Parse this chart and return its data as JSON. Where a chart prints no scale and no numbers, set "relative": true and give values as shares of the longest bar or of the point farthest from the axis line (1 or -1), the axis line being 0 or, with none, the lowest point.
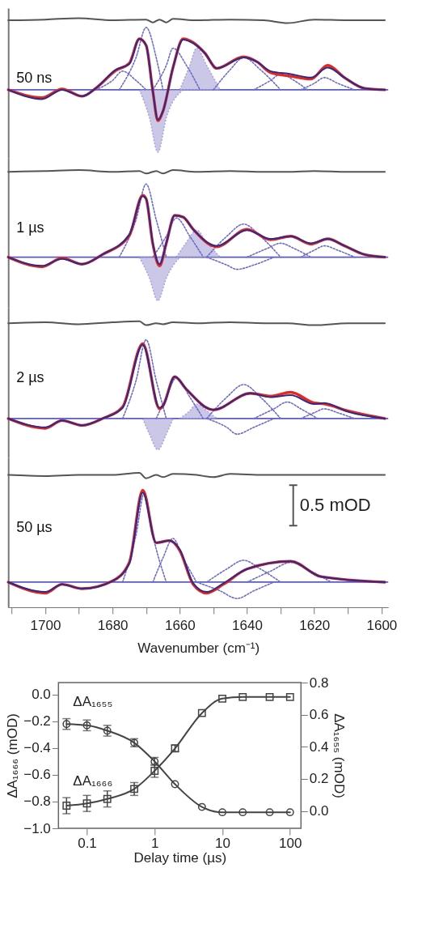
{
  "chart_data": [
    {
      "type": "line",
      "relative": true,
      "line_style": "solid",
      "xlim": [
        1711,
        1598
      ],
      "tick_labels": false,
      "annotations": [
        "50 ns"
      ],
      "ref_lines": [
        {
          "axis": "y",
          "value": 0,
          "color": "#5a5ac8"
        }
      ],
      "series": [
        {
          "type": "area",
          "color": "#b9b5e0",
          "line_style": "dotted",
          "x": [
            1672,
            1669,
            1666.5,
            1664,
            1659
          ],
          "values": [
            0,
            -0.39,
            -0.87,
            -0.39,
            0
          ]
        },
        {
          "type": "area",
          "color": "#b9b5e0",
          "line_style": "dotted",
          "x": [
            1660,
            1657,
            1655,
            1652,
            1648
          ],
          "values": [
            0,
            0.34,
            0.58,
            0.34,
            0
          ]
        },
        {
          "color": "#6b6bcc",
          "line_style": "dotted",
          "x": [
            1678,
            1673,
            1670,
            1667,
            1665
          ],
          "values": [
            0,
            0.45,
            0.87,
            0.45,
            0
          ]
        },
        {
          "color": "#6b6bcc",
          "line_style": "dotted",
          "x": [
            1668,
            1664,
            1662,
            1658,
            1654
          ],
          "values": [
            0,
            0.34,
            0.58,
            0.34,
            0
          ]
        },
        {
          "color": "#6b6bcc",
          "line_style": "dotted",
          "x": [
            1685,
            1680,
            1677,
            1673,
            1670
          ],
          "values": [
            0,
            0.13,
            0.26,
            0.13,
            0
          ]
        },
        {
          "color": "#6b6bcc",
          "line_style": "dotted",
          "x": [
            1650,
            1645,
            1641,
            1636,
            1630
          ],
          "values": [
            0,
            0.28,
            0.45,
            0.28,
            0
          ]
        },
        {
          "color": "#6b6bcc",
          "line_style": "dotted",
          "x": [
            1638,
            1633,
            1630,
            1626,
            1622
          ],
          "values": [
            0,
            0.13,
            0.22,
            0.13,
            0
          ]
        },
        {
          "color": "#6b6bcc",
          "line_style": "dotted",
          "x": [
            1624,
            1620,
            1617,
            1613,
            1608
          ],
          "values": [
            0,
            0.09,
            0.17,
            0.09,
            0
          ]
        },
        {
          "color": "#e8261c",
          "x": [
            1711,
            1701,
            1695,
            1689,
            1685,
            1679,
            1675,
            1672,
            1670,
            1668,
            1666.5,
            1665,
            1662,
            1659,
            1656,
            1652.5,
            1649,
            1641,
            1637,
            1633,
            1627,
            1621,
            1616,
            1611,
            1605,
            1599
          ],
          "values": [
            0,
            -0.11,
            0.01,
            -0.09,
            0.02,
            0.27,
            0.37,
            0.71,
            0.62,
            -0.02,
            -0.43,
            -0.3,
            0.31,
            0.71,
            0.66,
            0.51,
            0.3,
            0.46,
            0.39,
            0.24,
            0.19,
            0.15,
            0.34,
            0.17,
            0.02,
            0
          ]
        },
        {
          "color": "#2b2b8f",
          "x": [
            1711,
            1701,
            1695,
            1689,
            1685,
            1679,
            1675,
            1672,
            1670,
            1668,
            1666.5,
            1665,
            1662,
            1659,
            1656,
            1652.5,
            1649,
            1641,
            1637,
            1633,
            1627,
            1621,
            1616,
            1611,
            1605,
            1599
          ],
          "values": [
            0,
            -0.13,
            0,
            -0.09,
            0.02,
            0.28,
            0.36,
            0.71,
            0.62,
            -0.02,
            -0.42,
            -0.3,
            0.31,
            0.7,
            0.65,
            0.51,
            0.3,
            0.45,
            0.39,
            0.26,
            0.22,
            0.17,
            0.31,
            0.17,
            0.02,
            0
          ]
        },
        {
          "color": "#555555",
          "x": [
            1711,
            1700,
            1690,
            1680,
            1670,
            1668,
            1666,
            1664,
            1662,
            1655,
            1645,
            1635,
            1628,
            1620,
            1610,
            1599
          ],
          "values": [
            0.97,
            0.98,
            1,
            0.97,
            0.98,
            0.94,
            0.98,
            0.94,
            0.99,
            0.97,
            0.98,
            0.97,
            0.93,
            0.98,
            0.97,
            0.97
          ]
        }
      ]
    },
    {
      "type": "line",
      "relative": true,
      "line_style": "solid",
      "xlim": [
        1711,
        1598
      ],
      "tick_labels": false,
      "annotations": [
        "1 µs"
      ],
      "ref_lines": [
        {
          "axis": "y",
          "value": 0,
          "color": "#5a5ac8"
        }
      ],
      "series": [
        {
          "type": "area",
          "color": "#b9b5e0",
          "line_style": "dotted",
          "x": [
            1672,
            1669,
            1666.5,
            1664,
            1660
          ],
          "values": [
            0,
            -0.24,
            -0.5,
            -0.24,
            0
          ]
        },
        {
          "type": "area",
          "color": "#b9b5e0",
          "line_style": "dotted",
          "x": [
            1661,
            1658,
            1655,
            1652,
            1648
          ],
          "values": [
            0,
            0.17,
            0.31,
            0.17,
            0
          ]
        },
        {
          "color": "#6b6bcc",
          "line_style": "dotted",
          "x": [
            1678,
            1673,
            1670,
            1667,
            1664
          ],
          "values": [
            0,
            0.43,
            0.84,
            0.43,
            0
          ]
        },
        {
          "color": "#6b6bcc",
          "line_style": "dotted",
          "x": [
            1668,
            1664,
            1661,
            1657,
            1653
          ],
          "values": [
            0,
            0.24,
            0.45,
            0.24,
            0
          ]
        },
        {
          "color": "#6b6bcc",
          "line_style": "dotted",
          "x": [
            1652,
            1646,
            1641,
            1636,
            1630
          ],
          "values": [
            0,
            0.24,
            0.38,
            0.24,
            0
          ]
        },
        {
          "color": "#6b6bcc",
          "line_style": "dotted",
          "x": [
            1652,
            1646,
            1643,
            1638,
            1632
          ],
          "values": [
            0,
            -0.09,
            -0.14,
            -0.09,
            0
          ]
        },
        {
          "color": "#6b6bcc",
          "line_style": "dotted",
          "x": [
            1640,
            1634,
            1630,
            1626,
            1621
          ],
          "values": [
            0,
            0.1,
            0.16,
            0.1,
            0
          ]
        },
        {
          "color": "#6b6bcc",
          "line_style": "dotted",
          "x": [
            1624,
            1620,
            1617,
            1613,
            1608
          ],
          "values": [
            0,
            0.08,
            0.13,
            0.08,
            0
          ]
        },
        {
          "color": "#e8261c",
          "x": [
            1711,
            1701,
            1695,
            1689,
            1683,
            1675,
            1671,
            1670,
            1668,
            1666,
            1664,
            1661.5,
            1659,
            1656,
            1649,
            1640,
            1633,
            1627,
            1621,
            1616,
            1611,
            1605,
            1599
          ],
          "values": [
            0,
            -0.11,
            -0.01,
            -0.08,
            0.03,
            0.25,
            0.71,
            0.67,
            0.15,
            -0.1,
            0.16,
            0.48,
            0.46,
            0.32,
            0.12,
            0.32,
            0.2,
            0.24,
            0.15,
            0.21,
            0.13,
            0.03,
            0
          ]
        },
        {
          "color": "#2b2b8f",
          "x": [
            1711,
            1701,
            1695,
            1689,
            1683,
            1675,
            1671,
            1670,
            1668,
            1666,
            1664,
            1661.5,
            1659,
            1656,
            1649,
            1640,
            1633,
            1627,
            1621,
            1616,
            1611,
            1605,
            1599
          ],
          "values": [
            0,
            -0.1,
            -0.02,
            -0.08,
            0.03,
            0.26,
            0.7,
            0.67,
            0.16,
            -0.08,
            0.16,
            0.48,
            0.46,
            0.32,
            0.13,
            0.31,
            0.21,
            0.24,
            0.16,
            0.21,
            0.13,
            0.03,
            0
          ]
        },
        {
          "color": "#555555",
          "x": [
            1711,
            1700,
            1690,
            1680,
            1672,
            1670,
            1667,
            1665,
            1662,
            1655,
            1645,
            1635,
            1628,
            1620,
            1610,
            1599
          ],
          "values": [
            0.98,
            0.99,
            1,
            0.98,
            0.99,
            0.96,
            0.99,
            0.96,
            1,
            0.98,
            0.99,
            0.98,
            0.98,
            0.99,
            0.98,
            0.98
          ]
        }
      ]
    },
    {
      "type": "line",
      "relative": true,
      "line_style": "solid",
      "xlim": [
        1711,
        1598
      ],
      "tick_labels": false,
      "annotations": [
        "2 µs"
      ],
      "ref_lines": [
        {
          "axis": "y",
          "value": 0,
          "color": "#5a5ac8"
        }
      ],
      "series": [
        {
          "type": "area",
          "color": "#b9b5e0",
          "line_style": "dotted",
          "x": [
            1671,
            1669,
            1666.5,
            1664,
            1662
          ],
          "values": [
            0,
            -0.16,
            -0.32,
            -0.16,
            0
          ]
        },
        {
          "type": "area",
          "color": "#b9b5e0",
          "line_style": "dotted",
          "x": [
            1660,
            1657,
            1655,
            1652,
            1649
          ],
          "values": [
            0,
            0.08,
            0.15,
            0.08,
            0
          ]
        },
        {
          "color": "#6b6bcc",
          "line_style": "dotted",
          "x": [
            1677,
            1673,
            1670,
            1667,
            1664
          ],
          "values": [
            0,
            0.39,
            0.81,
            0.39,
            0
          ]
        },
        {
          "color": "#6b6bcc",
          "line_style": "dotted",
          "x": [
            1667,
            1664,
            1661,
            1657,
            1653
          ],
          "values": [
            0,
            0.22,
            0.42,
            0.22,
            0
          ]
        },
        {
          "color": "#6b6bcc",
          "line_style": "dotted",
          "x": [
            1652,
            1646,
            1641,
            1636,
            1630
          ],
          "values": [
            0,
            0.22,
            0.35,
            0.22,
            0
          ]
        },
        {
          "color": "#6b6bcc",
          "line_style": "dotted",
          "x": [
            1652,
            1646,
            1643,
            1638,
            1632
          ],
          "values": [
            0,
            -0.09,
            -0.16,
            -0.09,
            0
          ]
        },
        {
          "color": "#6b6bcc",
          "line_style": "dotted",
          "x": [
            1638,
            1632,
            1628,
            1624,
            1619
          ],
          "values": [
            0,
            0.1,
            0.17,
            0.1,
            0
          ]
        },
        {
          "color": "#6b6bcc",
          "line_style": "dotted",
          "x": [
            1624,
            1620,
            1617,
            1613,
            1608
          ],
          "values": [
            0,
            0.06,
            0.1,
            0.06,
            0
          ]
        },
        {
          "color": "#e8261c",
          "x": [
            1711,
            1700,
            1695,
            1689,
            1683,
            1677,
            1671,
            1666,
            1665,
            1661.5,
            1658,
            1650,
            1639,
            1633,
            1627,
            1620,
            1617,
            1610,
            1599
          ],
          "values": [
            0,
            -0.1,
            -0.02,
            -0.07,
            0,
            0.12,
            0.77,
            0.1,
            0.13,
            0.43,
            0.3,
            0.09,
            0.26,
            0.23,
            0.27,
            0.16,
            0.15,
            0.08,
            0
          ]
        },
        {
          "color": "#2b2b8f",
          "x": [
            1711,
            1700,
            1695,
            1689,
            1683,
            1677,
            1671,
            1666,
            1665,
            1661.5,
            1658,
            1650,
            1639,
            1633,
            1627,
            1620,
            1617,
            1610,
            1599
          ],
          "values": [
            0,
            -0.09,
            -0.02,
            -0.07,
            0,
            0.11,
            0.76,
            0.11,
            0.13,
            0.43,
            0.3,
            0.09,
            0.26,
            0.22,
            0.24,
            0.15,
            0.16,
            0.07,
            0
          ]
        },
        {
          "color": "#555555",
          "x": [
            1711,
            1700,
            1690,
            1680,
            1672,
            1670,
            1667,
            1665,
            1662,
            1655,
            1645,
            1635,
            1628,
            1620,
            1610,
            1599
          ],
          "values": [
            0.98,
            0.99,
            0.97,
            0.99,
            1,
            0.96,
            0.98,
            0.97,
            0.99,
            0.98,
            0.99,
            0.98,
            0.98,
            0.96,
            0.98,
            0.98
          ]
        }
      ]
    },
    {
      "type": "line",
      "relative": true,
      "line_style": "solid",
      "xlim": [
        1711,
        1598
      ],
      "tick_labels": "x",
      "xlabel": "Wavenumber (cm⁻¹)",
      "xticks": [
        {
          "value": 1710,
          "label": null
        },
        {
          "value": 1700,
          "label": "1700"
        },
        {
          "value": 1690,
          "label": null
        },
        {
          "value": 1680,
          "label": "1680"
        },
        {
          "value": 1670,
          "label": null
        },
        {
          "value": 1660,
          "label": "1660"
        },
        {
          "value": 1650,
          "label": null
        },
        {
          "value": 1640,
          "label": "1640"
        },
        {
          "value": 1630,
          "label": null
        },
        {
          "value": 1620,
          "label": "1620"
        },
        {
          "value": 1610,
          "label": null
        },
        {
          "value": 1600,
          "label": "1600"
        }
      ],
      "annotations": [
        "50 µs",
        "0.5 mOD"
      ],
      "ref_lines": [
        {
          "axis": "y",
          "value": 0,
          "color": "#5a5ac8"
        }
      ],
      "series": [
        {
          "color": "#6b6bcc",
          "line_style": "dotted",
          "x": [
            1677,
            1673,
            1670.5,
            1668,
            1664
          ],
          "values": [
            0,
            0.43,
            0.82,
            0.43,
            0
          ]
        },
        {
          "color": "#6b6bcc",
          "line_style": "dotted",
          "x": [
            1668,
            1665,
            1662,
            1659,
            1655
          ],
          "values": [
            0,
            0.22,
            0.4,
            0.22,
            0
          ]
        },
        {
          "color": "#6b6bcc",
          "line_style": "dotted",
          "x": [
            1652,
            1646,
            1641,
            1636,
            1630
          ],
          "values": [
            0,
            0.12,
            0.2,
            0.12,
            0
          ]
        },
        {
          "color": "#6b6bcc",
          "line_style": "dotted",
          "x": [
            1655,
            1648,
            1643,
            1638,
            1632
          ],
          "values": [
            0,
            -0.08,
            -0.15,
            -0.08,
            0
          ]
        },
        {
          "color": "#6b6bcc",
          "line_style": "dotted",
          "x": [
            1640,
            1633,
            1627,
            1621,
            1615
          ],
          "values": [
            0,
            0.1,
            0.18,
            0.1,
            0
          ]
        },
        {
          "color": "#e8261c",
          "x": [
            1711,
            1700,
            1695,
            1689,
            1680,
            1675,
            1671,
            1667,
            1663,
            1660,
            1656,
            1652,
            1647,
            1640,
            1627,
            1618,
            1599
          ],
          "values": [
            0,
            -0.1,
            -0.02,
            -0.06,
            0.01,
            0.18,
            0.84,
            0.36,
            0.38,
            0.29,
            -0.02,
            -0.1,
            -0.02,
            0.12,
            0.19,
            0.05,
            0
          ]
        },
        {
          "color": "#2b2b8f",
          "x": [
            1711,
            1700,
            1695,
            1689,
            1680,
            1675,
            1671,
            1667,
            1663,
            1660,
            1656,
            1652,
            1647,
            1640,
            1627,
            1618,
            1599
          ],
          "values": [
            0,
            -0.09,
            -0.02,
            -0.06,
            0.01,
            0.17,
            0.82,
            0.36,
            0.38,
            0.3,
            -0.01,
            -0.09,
            -0.01,
            0.12,
            0.19,
            0.05,
            0
          ]
        },
        {
          "color": "#555555",
          "x": [
            1711,
            1700,
            1690,
            1680,
            1672,
            1670,
            1667,
            1665,
            1662,
            1655,
            1650,
            1645,
            1635,
            1628,
            1620,
            1610,
            1599
          ],
          "values": [
            0.98,
            0.97,
            0.98,
            0.98,
            1,
            0.95,
            0.98,
            0.96,
            0.99,
            0.98,
            0.96,
            0.99,
            0.98,
            0.98,
            0.98,
            0.98,
            0.98
          ]
        }
      ]
    },
    {
      "type": "line",
      "log": "x",
      "grid": false,
      "xlabel": "Delay time (µs)",
      "ylabel": "ΔA₁₆₆₆ (mOD)",
      "y2label": "ΔA₁₆₅₅ (mOD)",
      "xlim": [
        0.038,
        145
      ],
      "xticks": [
        0.1,
        1,
        10,
        100
      ],
      "ylim": [
        -1.0,
        0.09
      ],
      "yticks": [
        {
          "value": 0,
          "label": "0.0"
        },
        {
          "value": -0.2,
          "label": "−0.2"
        },
        {
          "value": -0.4,
          "label": "−0.4"
        },
        {
          "value": -0.6,
          "label": "−0.6"
        },
        {
          "value": -0.8,
          "label": "−0.8"
        },
        {
          "value": -1.0,
          "label": "−1.0"
        }
      ],
      "y2lim": [
        -0.108,
        0.8
      ],
      "y2ticks": [
        {
          "value": 0,
          "label": "0.0"
        },
        {
          "value": 0.2,
          "label": "0.2"
        },
        {
          "value": 0.4,
          "label": "0.4"
        },
        {
          "value": 0.6,
          "label": "0.6"
        },
        {
          "value": 0.8,
          "label": "0.8"
        }
      ],
      "annotations": [
        "ΔA₁₆₅₅",
        "ΔA₁₆₆₆"
      ],
      "series": [
        {
          "color": "#444444",
          "marker": "circle",
          "x": [
            0.05,
            0.1,
            0.2,
            0.5,
            1,
            2,
            5,
            10,
            20,
            50,
            100
          ],
          "values": [
            -0.22,
            -0.23,
            -0.27,
            -0.36,
            -0.5,
            -0.67,
            -0.84,
            -0.88,
            -0.88,
            -0.88,
            -0.88
          ],
          "errors": [
            0.04,
            0.04,
            0.04,
            0.03,
            0.03,
            null,
            null,
            null,
            null,
            null,
            null
          ]
        },
        {
          "color": "#444444",
          "marker": "square",
          "axis": "y2",
          "x": [
            0.05,
            0.1,
            0.2,
            0.5,
            1,
            2,
            5,
            10,
            20,
            50,
            100
          ],
          "values": [
            0.033,
            0.047,
            0.075,
            0.137,
            0.25,
            0.39,
            0.61,
            0.7,
            0.71,
            0.71,
            0.71
          ],
          "errors": [
            0.05,
            0.05,
            0.05,
            0.04,
            0.04,
            0.02,
            null,
            null,
            null,
            null,
            null
          ]
        }
      ]
    }
  ]
}
